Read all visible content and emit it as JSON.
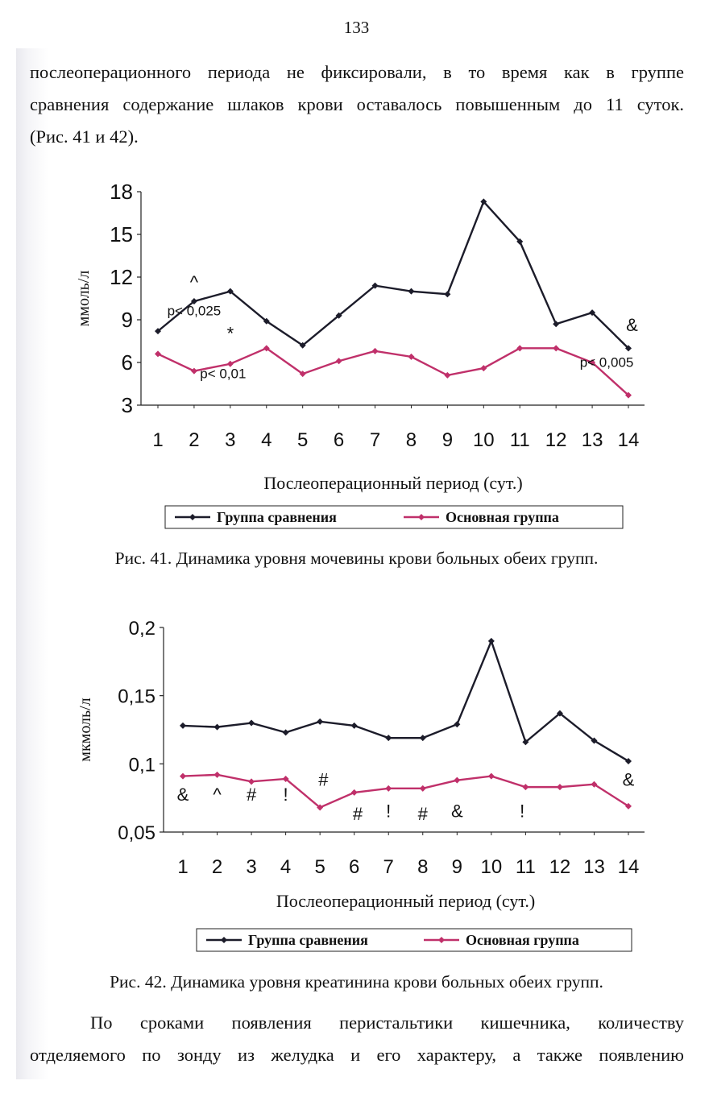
{
  "page_number": "133",
  "intro_lines": [
    "послеоперационного периода не фиксировали, в то время как в группе",
    "сравнения содержание шлаков крови оставалось повышенным до 11 суток.",
    "(Рис. 41 и 42)."
  ],
  "figure41": {
    "caption": "Рис. 41. Динамика уровня мочевины крови больных обеих групп."
  },
  "figure42": {
    "caption": "Рис. 42. Динамика уровня креатинина крови больных обеих групп."
  },
  "outro_lines": [
    "По сроками появления перистальтики кишечника, количеству",
    "отделяемого по зонду из желудка и его характеру, а также появлению"
  ],
  "chart_data": [
    {
      "type": "line",
      "x": [
        1,
        2,
        3,
        4,
        5,
        6,
        7,
        8,
        9,
        10,
        11,
        12,
        13,
        14
      ],
      "xlabel": "Послеоперационный период (сут.)",
      "ylabel": "ммоль/л",
      "ylim": [
        3,
        18
      ],
      "yticks": [
        "3",
        "6",
        "9",
        "12",
        "15",
        "18"
      ],
      "legend_position": "bottom",
      "series": [
        {
          "name": "Группа сравнения",
          "color": "#1c1c2a",
          "values": [
            8.2,
            10.3,
            11.0,
            8.9,
            7.2,
            9.3,
            11.4,
            11.0,
            10.8,
            17.3,
            14.5,
            8.7,
            9.5,
            7.0
          ]
        },
        {
          "name": "Основная группа",
          "color": "#c0306a",
          "values": [
            6.6,
            5.4,
            5.9,
            7.0,
            5.2,
            6.1,
            6.8,
            6.4,
            5.1,
            5.6,
            7.0,
            7.0,
            6.0,
            3.7
          ]
        }
      ],
      "annotations": [
        {
          "text": "p< 0,025",
          "x": 2.0,
          "y": 9.3
        },
        {
          "text": "^",
          "x": 2.0,
          "y": 11.2
        },
        {
          "text": "*",
          "x": 3.0,
          "y": 7.6
        },
        {
          "text": "p< 0,01",
          "x": 2.8,
          "y": 4.9
        },
        {
          "text": "&",
          "x": 14.1,
          "y": 8.2
        },
        {
          "text": "p< 0,005",
          "x": 13.4,
          "y": 5.7
        }
      ]
    },
    {
      "type": "line",
      "x": [
        1,
        2,
        3,
        4,
        5,
        6,
        7,
        8,
        9,
        10,
        11,
        12,
        13,
        14
      ],
      "xlabel": "Послеоперационный период (сут.)",
      "ylabel": "мкмоль/л",
      "ylim": [
        0.05,
        0.2
      ],
      "yticks": [
        "0,05",
        "0,1",
        "0,15",
        "0,2"
      ],
      "legend_position": "bottom",
      "series": [
        {
          "name": "Группа сравнения",
          "color": "#1c1c2a",
          "values": [
            0.128,
            0.127,
            0.13,
            0.123,
            0.131,
            0.128,
            0.119,
            0.119,
            0.129,
            0.19,
            0.116,
            0.137,
            0.117,
            0.102
          ]
        },
        {
          "name": "Основная группа",
          "color": "#c0306a",
          "values": [
            0.091,
            0.092,
            0.087,
            0.089,
            0.068,
            0.079,
            0.082,
            0.082,
            0.088,
            0.091,
            0.083,
            0.083,
            0.085,
            0.069
          ]
        }
      ],
      "annotations": [
        {
          "text": "&",
          "x": 1.0,
          "y": 0.073
        },
        {
          "text": "^",
          "x": 2.0,
          "y": 0.073
        },
        {
          "text": "#",
          "x": 3.0,
          "y": 0.073
        },
        {
          "text": "!",
          "x": 4.0,
          "y": 0.073
        },
        {
          "text": "#",
          "x": 5.1,
          "y": 0.084
        },
        {
          "text": "#",
          "x": 6.1,
          "y": 0.059
        },
        {
          "text": "!",
          "x": 7.0,
          "y": 0.061
        },
        {
          "text": "#",
          "x": 8.0,
          "y": 0.059
        },
        {
          "text": "&",
          "x": 9.0,
          "y": 0.061
        },
        {
          "text": "!",
          "x": 10.9,
          "y": 0.061
        },
        {
          "text": "&",
          "x": 14.0,
          "y": 0.084
        }
      ]
    }
  ]
}
